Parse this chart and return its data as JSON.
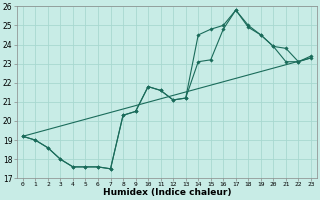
{
  "title": "",
  "xlabel": "Humidex (Indice chaleur)",
  "ylabel": "",
  "bg_color": "#c8ece6",
  "grid_color": "#a8d8d0",
  "line_color": "#1a6b5a",
  "xlim": [
    -0.5,
    23.5
  ],
  "ylim": [
    17,
    26
  ],
  "yticks": [
    17,
    18,
    19,
    20,
    21,
    22,
    23,
    24,
    25,
    26
  ],
  "xticks": [
    0,
    1,
    2,
    3,
    4,
    5,
    6,
    7,
    8,
    9,
    10,
    11,
    12,
    13,
    14,
    15,
    16,
    17,
    18,
    19,
    20,
    21,
    22,
    23
  ],
  "line1_x": [
    0,
    1,
    2,
    3,
    4,
    5,
    6,
    7,
    8,
    9,
    10,
    11,
    12,
    13,
    14,
    15,
    16,
    17,
    18,
    19,
    20,
    21,
    22,
    23
  ],
  "line1_y": [
    19.2,
    19.0,
    18.6,
    18.0,
    17.6,
    17.6,
    17.6,
    17.5,
    20.3,
    20.5,
    21.8,
    21.6,
    21.1,
    21.2,
    24.5,
    24.8,
    25.0,
    25.8,
    25.0,
    24.5,
    23.9,
    23.1,
    23.1,
    23.3
  ],
  "line2_x": [
    0,
    1,
    2,
    3,
    4,
    5,
    6,
    7,
    8,
    9,
    10,
    11,
    12,
    13,
    14,
    15,
    16,
    17,
    18,
    19,
    20,
    21,
    22,
    23
  ],
  "line2_y": [
    19.2,
    19.0,
    18.6,
    18.0,
    17.6,
    17.6,
    17.6,
    17.5,
    20.3,
    20.5,
    21.8,
    21.6,
    21.1,
    21.2,
    23.1,
    23.2,
    24.8,
    25.8,
    24.9,
    24.5,
    23.9,
    23.8,
    23.1,
    23.4
  ],
  "line3_x": [
    0,
    23
  ],
  "line3_y": [
    19.2,
    23.3
  ],
  "figsize": [
    3.2,
    2.0
  ],
  "dpi": 100
}
